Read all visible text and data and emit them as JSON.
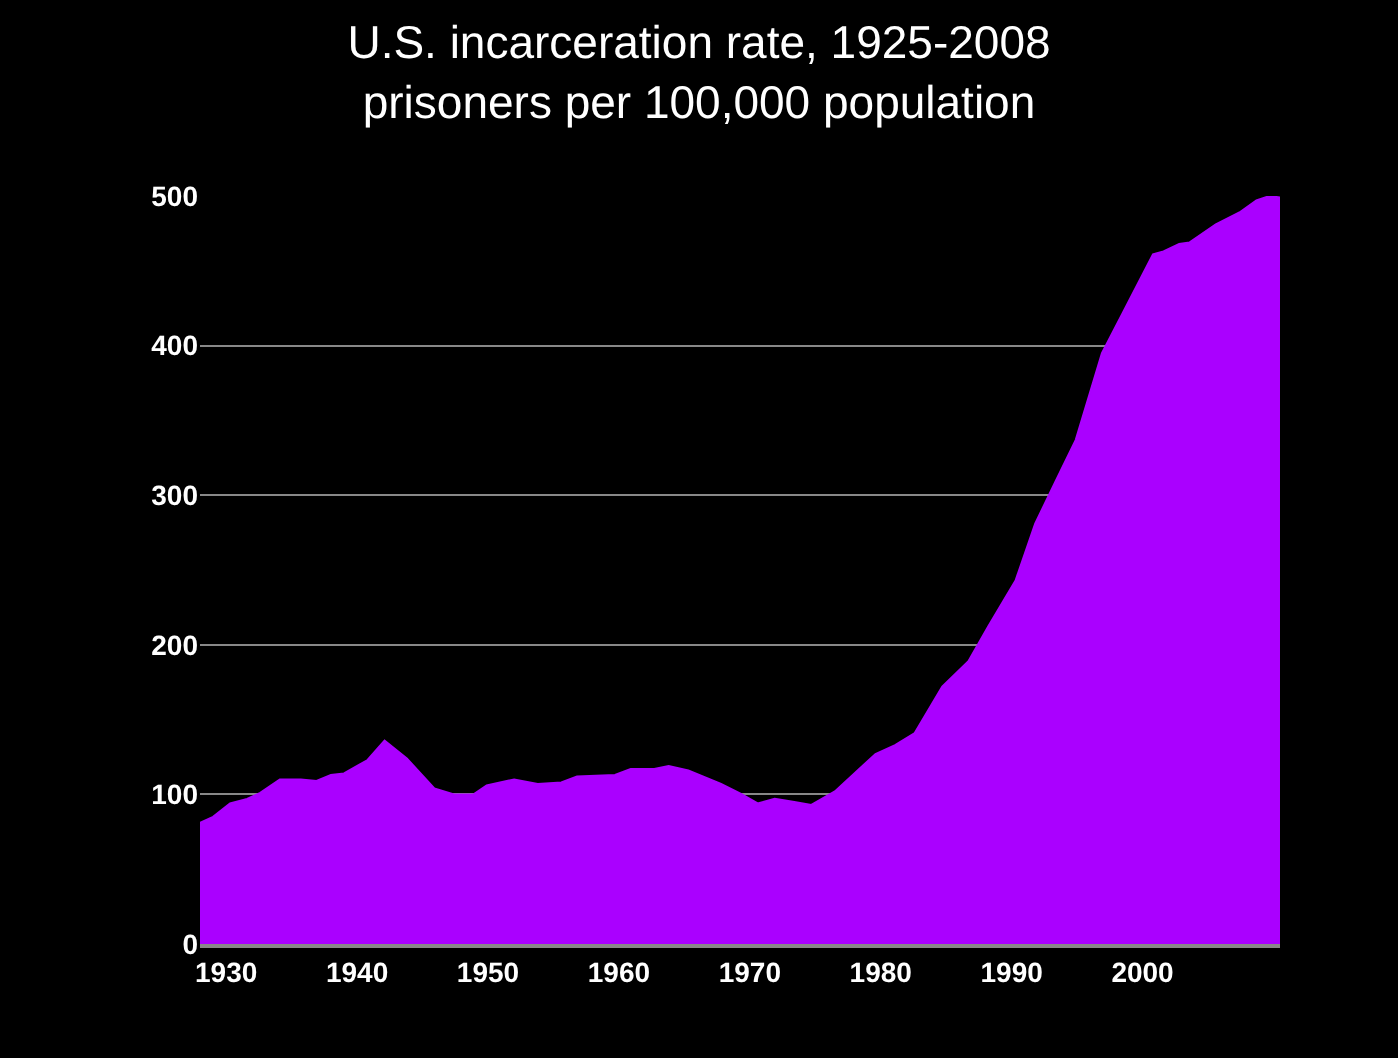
{
  "chart_data": {
    "type": "area",
    "title": "U.S. incarceration rate, 1925-2008\nprisoners per 100,000 population",
    "x": [
      1928.0,
      1929.0,
      1930.3,
      1931.6,
      1932.6,
      1934.1,
      1935.7,
      1936.9,
      1938.0,
      1939.0,
      1940.8,
      1942.1,
      1943.8,
      1945.9,
      1947.4,
      1948.9,
      1949.9,
      1952.0,
      1953.8,
      1955.6,
      1956.8,
      1959.7,
      1960.9,
      1962.7,
      1963.8,
      1965.3,
      1967.8,
      1969.4,
      1970.6,
      1971.9,
      1973.4,
      1974.7,
      1976.5,
      1979.6,
      1981.1,
      1982.6,
      1984.7,
      1986.7,
      1988.2,
      1990.3,
      1991.8,
      1993.4,
      1994.9,
      1996.9,
      1998.5,
      2000.8,
      2001.6,
      2002.8,
      2003.6,
      2005.6,
      2007.4,
      2008.7,
      2009.7,
      2010.5
    ],
    "series": [
      {
        "color": "#aa00ff",
        "values": [
          81,
          85,
          94,
          97,
          101,
          110,
          110,
          109,
          113,
          114,
          123,
          136,
          124,
          104,
          100,
          100,
          106,
          110,
          107,
          108,
          112,
          113,
          117,
          117,
          119,
          116,
          107,
          100,
          94,
          97,
          95,
          93,
          102,
          127,
          133,
          141,
          172,
          189,
          212,
          243,
          281,
          310,
          337,
          395,
          422,
          461,
          463,
          468,
          469,
          481,
          489,
          497,
          500,
          499
        ]
      }
    ],
    "xlim": [
      1928,
      2010.5
    ],
    "xticks": [
      1930,
      1940,
      1950,
      1960,
      1970,
      1980,
      1990,
      2000
    ],
    "ylim": [
      0,
      500
    ],
    "yticks": [
      0,
      100,
      200,
      300,
      400,
      500
    ],
    "grid": "y"
  }
}
